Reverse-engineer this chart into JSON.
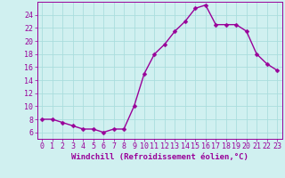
{
  "x": [
    0,
    1,
    2,
    3,
    4,
    5,
    6,
    7,
    8,
    9,
    10,
    11,
    12,
    13,
    14,
    15,
    16,
    17,
    18,
    19,
    20,
    21,
    22,
    23
  ],
  "y": [
    8,
    8,
    7.5,
    7,
    6.5,
    6.5,
    6,
    6.5,
    6.5,
    10,
    15,
    18,
    19.5,
    21.5,
    23,
    25,
    25.5,
    22.5,
    22.5,
    22.5,
    21.5,
    18,
    16.5,
    15.5
  ],
  "line_color": "#990099",
  "marker_color": "#990099",
  "bg_color": "#d0f0f0",
  "grid_color": "#aadddd",
  "xlabel": "Windchill (Refroidissement éolien,°C)",
  "title": "",
  "xlim": [
    -0.5,
    23.5
  ],
  "ylim": [
    5.0,
    26.0
  ],
  "yticks": [
    6,
    8,
    10,
    12,
    14,
    16,
    18,
    20,
    22,
    24
  ],
  "xticks": [
    0,
    1,
    2,
    3,
    4,
    5,
    6,
    7,
    8,
    9,
    10,
    11,
    12,
    13,
    14,
    15,
    16,
    17,
    18,
    19,
    20,
    21,
    22,
    23
  ],
  "xlabel_fontsize": 6.5,
  "tick_fontsize": 6,
  "line_width": 1.0,
  "marker_size": 2.5
}
